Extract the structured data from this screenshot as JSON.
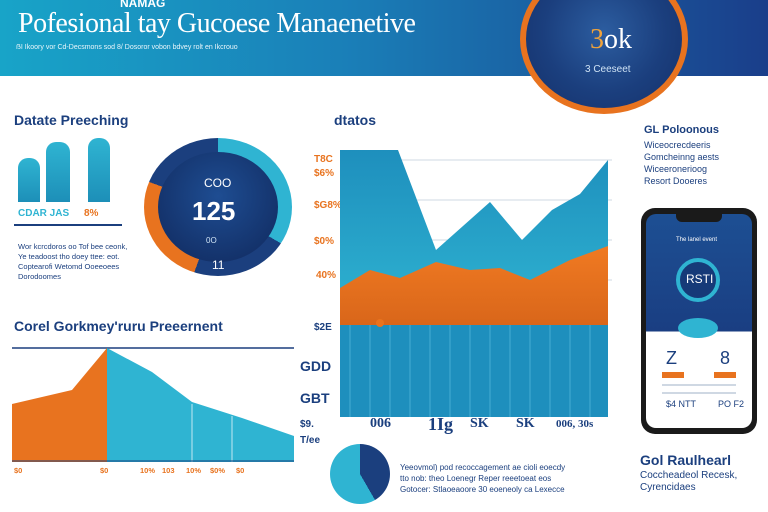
{
  "header": {
    "top_label": "NAMAG",
    "title": "Pofesional tay Gucoese Manaenetive",
    "subtitle": "ẞI Ikoory vor Cd-Decsmons sod 8/ Dosoror vobon bdvey rolt en Ikcrouo"
  },
  "kpi": {
    "value_prefix": "3",
    "value_suffix": "ok",
    "label": "3 Ceeseet"
  },
  "left_section": {
    "title": "Datate Preeching",
    "tags": [
      "CDAR JAS",
      "8%"
    ],
    "notes": [
      "Wor kcrcdoros oo Tof bee ceonk,",
      "Ye teadoost tho doey ttee: eot.",
      "Coptearofi Wetomd Ooeeoees",
      "Dorodoomes"
    ]
  },
  "donut": {
    "top": "COO",
    "value": "125",
    "sub": "0O",
    "bottom": "11"
  },
  "area_section": {
    "title": "dtatos",
    "y_labels": [
      "T8C",
      "$6%",
      "$G8%",
      "$0%",
      "40%",
      "$2E"
    ],
    "x_labels": [
      "006",
      "1Ig",
      "SK",
      "SK",
      "006, 30s"
    ]
  },
  "bottom_left": {
    "title": "Corel Gorkmey'ruru Preeernent",
    "axis_left": [
      "$9.",
      "T/ee"
    ],
    "axis_bottom": [
      "$0",
      "$0",
      "10%",
      "103",
      "10%",
      "$0%",
      "$0"
    ]
  },
  "mid_labels": {
    "g1": "GDD",
    "g2": "GBT"
  },
  "right_section": {
    "title": "GL Poloonous",
    "lines": [
      "Wiceocrecdeeris",
      "Gomcheinng aests",
      "Wiceeronerioog",
      "Resort Dooeres"
    ]
  },
  "phone": {
    "header": "The lanel event",
    "gauge": "RSTI",
    "stats": [
      "Z",
      "8"
    ],
    "rows": [
      "$4 NTT",
      "PO F2"
    ]
  },
  "bottom_center": {
    "lines": [
      "Yeeovmol) pod recoccagement ae cioli eoecdy",
      "tto nob: theo Loenegr Reper reeetoeat eos",
      "Gotocer: Stlaoeaoore 30 eoeneoly ca Lexecce"
    ]
  },
  "bottom_right": {
    "title": "Gol Raulhearl",
    "lines": [
      "Coccheadeol Recesk,",
      "Cyrencidaes"
    ]
  },
  "colors": {
    "navy": "#1b3f7e",
    "teal": "#2fb4d2",
    "orange": "#e8731f"
  }
}
